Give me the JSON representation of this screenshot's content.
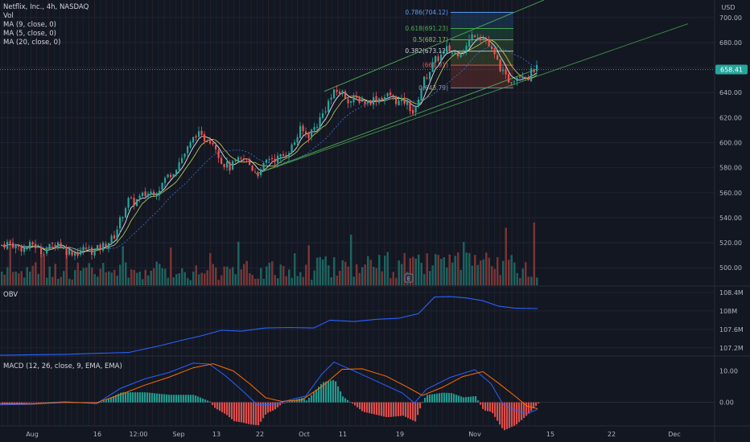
{
  "header": {
    "symbol_line": "Netflix, Inc., 4h, NASDAQ",
    "indicators": [
      "Vol",
      "MA (9, close, 0)",
      "MA (5, close, 0)",
      "MA (20, close, 0)"
    ],
    "currency": "USD"
  },
  "price": {
    "last_label": "658.41",
    "last_color": "#26a69a"
  },
  "fib": {
    "levels": [
      {
        "ratio": "0.786",
        "value": 704.12,
        "label": "0.786(704.12)",
        "color": "#5b9cf6"
      },
      {
        "ratio": "0.618",
        "value": 691.23,
        "label": "0.618(691.23)",
        "color": "#4caf50"
      },
      {
        "ratio": "0.5",
        "value": 682.17,
        "label": "0.5(682.17)",
        "color": "#8bc34a"
      },
      {
        "ratio": "0.382",
        "value": 673.12,
        "label": "0.382(673.12)",
        "color": "#d1d4dc"
      },
      {
        "ratio": "0.236",
        "value": 661.91,
        "label": "(661.91)",
        "color": "#ef5350"
      },
      {
        "ratio": "0",
        "value": 643.79,
        "label": "0(643.79)",
        "color": "#9598a1"
      }
    ]
  },
  "panes": {
    "obv_label": "OBV",
    "macd_label": "MACD (12, 26, close, 9, EMA, EMA)",
    "event_badge": "E"
  },
  "chart_data": [
    {
      "type": "candlestick",
      "title": "Netflix, Inc., 4h, NASDAQ",
      "y_unit": "USD",
      "ylim": [
        486,
        714
      ],
      "y_ticks": [
        500,
        520,
        540,
        560,
        580,
        600,
        620,
        640,
        660,
        680,
        700
      ],
      "y_tick_labels": [
        "500.00",
        "520.00",
        "540.00",
        "560.00",
        "580.00",
        "600.00",
        "620.00",
        "640.00",
        "660.00",
        "680.00",
        "700.00"
      ],
      "x_tick_labels": [
        "Aug",
        "16",
        "12:00",
        "Sep",
        "13",
        "22",
        "Oct",
        "11",
        "19",
        "Nov",
        "15",
        "22",
        "Dec"
      ],
      "close_path": [
        [
          0,
          518
        ],
        [
          10,
          520
        ],
        [
          20,
          517
        ],
        [
          30,
          515
        ],
        [
          40,
          519
        ],
        [
          50,
          513
        ],
        [
          60,
          516
        ],
        [
          70,
          521
        ],
        [
          80,
          514
        ],
        [
          95,
          512
        ],
        [
          105,
          516
        ],
        [
          115,
          513
        ],
        [
          128,
          518
        ],
        [
          140,
          524
        ],
        [
          150,
          541
        ],
        [
          158,
          554
        ],
        [
          165,
          552
        ],
        [
          175,
          557
        ],
        [
          185,
          560
        ],
        [
          195,
          562
        ],
        [
          205,
          572
        ],
        [
          215,
          578
        ],
        [
          225,
          588
        ],
        [
          235,
          598
        ],
        [
          243,
          608
        ],
        [
          250,
          603
        ],
        [
          258,
          604
        ],
        [
          266,
          599
        ],
        [
          274,
          585
        ],
        [
          284,
          580
        ],
        [
          294,
          585
        ],
        [
          304,
          587
        ],
        [
          314,
          578
        ],
        [
          322,
          575
        ],
        [
          332,
          588
        ],
        [
          342,
          587
        ],
        [
          352,
          590
        ],
        [
          362,
          597
        ],
        [
          372,
          610
        ],
        [
          382,
          606
        ],
        [
          392,
          614
        ],
        [
          400,
          623
        ],
        [
          408,
          634
        ],
        [
          416,
          641
        ],
        [
          424,
          640
        ],
        [
          434,
          633
        ],
        [
          444,
          635
        ],
        [
          454,
          632
        ],
        [
          464,
          635
        ],
        [
          474,
          636
        ],
        [
          484,
          638
        ],
        [
          494,
          632
        ],
        [
          504,
          633
        ],
        [
          514,
          622
        ],
        [
          520,
          640
        ],
        [
          526,
          650
        ],
        [
          533,
          658
        ],
        [
          540,
          666
        ],
        [
          548,
          670
        ],
        [
          555,
          675
        ],
        [
          563,
          671
        ],
        [
          570,
          673
        ],
        [
          578,
          676
        ],
        [
          584,
          684
        ],
        [
          590,
          688
        ],
        [
          596,
          685
        ],
        [
          602,
          683
        ],
        [
          608,
          675
        ],
        [
          614,
          668
        ],
        [
          620,
          661
        ],
        [
          626,
          652
        ],
        [
          632,
          650
        ],
        [
          640,
          653
        ],
        [
          648,
          656
        ],
        [
          655,
          652
        ],
        [
          662,
          659
        ],
        [
          668,
          658.41
        ]
      ],
      "volume_path": [
        [
          0,
          512
        ],
        [
          20,
          508
        ],
        [
          40,
          510
        ],
        [
          60,
          506
        ],
        [
          80,
          509
        ],
        [
          100,
          507
        ],
        [
          120,
          511
        ],
        [
          140,
          515
        ],
        [
          160,
          519
        ],
        [
          180,
          520
        ],
        [
          200,
          526
        ],
        [
          220,
          531
        ],
        [
          240,
          538
        ],
        [
          260,
          532
        ],
        [
          280,
          536
        ],
        [
          300,
          541
        ],
        [
          320,
          544
        ],
        [
          340,
          548
        ],
        [
          360,
          554
        ],
        [
          380,
          558
        ],
        [
          400,
          563
        ],
        [
          420,
          562
        ],
        [
          440,
          566
        ],
        [
          460,
          572
        ],
        [
          480,
          575
        ],
        [
          500,
          580
        ],
        [
          520,
          596
        ],
        [
          540,
          610
        ],
        [
          560,
          604
        ],
        [
          580,
          601
        ],
        [
          600,
          600
        ],
        [
          620,
          598
        ],
        [
          640,
          596
        ],
        [
          660,
          590
        ],
        [
          668,
          589
        ]
      ],
      "channel_upper": [
        [
          403,
          641
        ],
        [
          676,
          714
        ]
      ],
      "channel_lower": [
        [
          318,
          575
        ],
        [
          668,
          659
        ]
      ],
      "channel_mid": [
        [
          318,
          575
        ],
        [
          855,
          695
        ]
      ],
      "fib_box": {
        "x_from": 560,
        "x_to": 638
      }
    },
    {
      "type": "line",
      "title": "OBV",
      "y_unit": "shares",
      "y_ticks": [
        107.2,
        107.6,
        108,
        108.4
      ],
      "y_tick_labels": [
        "107.2M",
        "107.6M",
        "108M",
        "108.4M"
      ],
      "ylim": [
        107.04,
        108.52
      ],
      "series": [
        {
          "name": "OBV",
          "color": "#2962ff",
          "points": [
            [
              0,
              107.04
            ],
            [
              40,
              107.05
            ],
            [
              80,
              107.06
            ],
            [
              120,
              107.08
            ],
            [
              160,
              107.1
            ],
            [
              200,
              107.25
            ],
            [
              225,
              107.36
            ],
            [
              250,
              107.46
            ],
            [
              275,
              107.58
            ],
            [
              300,
              107.56
            ],
            [
              330,
              107.63
            ],
            [
              360,
              107.64
            ],
            [
              390,
              107.63
            ],
            [
              410,
              107.8
            ],
            [
              440,
              107.77
            ],
            [
              470,
              107.82
            ],
            [
              495,
              107.84
            ],
            [
              520,
              107.94
            ],
            [
              540,
              108.3
            ],
            [
              560,
              108.31
            ],
            [
              580,
              108.28
            ],
            [
              600,
              108.22
            ],
            [
              620,
              108.1
            ],
            [
              640,
              108.06
            ],
            [
              668,
              108.05
            ]
          ]
        }
      ]
    },
    {
      "type": "macd",
      "title": "MACD (12, 26, close, 9, EMA, EMA)",
      "y_ticks": [
        0,
        10
      ],
      "y_tick_labels": [
        "0.00",
        "10.00"
      ],
      "ylim": [
        -7.5,
        14.5
      ],
      "series": [
        {
          "name": "MACD",
          "color": "#2962ff",
          "points": [
            [
              0,
              -0.8
            ],
            [
              40,
              -0.6
            ],
            [
              80,
              0.2
            ],
            [
              120,
              -0.4
            ],
            [
              150,
              4.5
            ],
            [
              180,
              7.5
            ],
            [
              210,
              9.5
            ],
            [
              240,
              12.5
            ],
            [
              260,
              12.2
            ],
            [
              280,
              8.5
            ],
            [
              300,
              4.0
            ],
            [
              320,
              -0.8
            ],
            [
              340,
              -0.6
            ],
            [
              360,
              0.8
            ],
            [
              380,
              2.0
            ],
            [
              400,
              9.0
            ],
            [
              415,
              12.8
            ],
            [
              440,
              10.0
            ],
            [
              470,
              6.5
            ],
            [
              500,
              3.0
            ],
            [
              515,
              -0.2
            ],
            [
              530,
              4.2
            ],
            [
              560,
              8.0
            ],
            [
              590,
              10.4
            ],
            [
              610,
              6.0
            ],
            [
              625,
              -0.6
            ],
            [
              640,
              -2.5
            ],
            [
              655,
              -3.6
            ],
            [
              668,
              -2.2
            ]
          ]
        },
        {
          "name": "Signal",
          "color": "#ff6d00",
          "points": [
            [
              0,
              -0.4
            ],
            [
              40,
              -0.5
            ],
            [
              80,
              0.0
            ],
            [
              120,
              -0.1
            ],
            [
              150,
              2.5
            ],
            [
              180,
              5.5
            ],
            [
              210,
              8.0
            ],
            [
              240,
              11.0
            ],
            [
              265,
              12.3
            ],
            [
              290,
              10.0
            ],
            [
              310,
              6.0
            ],
            [
              330,
              1.5
            ],
            [
              350,
              0.3
            ],
            [
              375,
              0.8
            ],
            [
              400,
              5.0
            ],
            [
              425,
              10.5
            ],
            [
              450,
              10.7
            ],
            [
              480,
              8.3
            ],
            [
              505,
              5.0
            ],
            [
              525,
              2.2
            ],
            [
              550,
              4.8
            ],
            [
              575,
              8.2
            ],
            [
              600,
              9.8
            ],
            [
              620,
              6.0
            ],
            [
              640,
              2.0
            ],
            [
              655,
              -1.2
            ],
            [
              668,
              -2.0
            ]
          ]
        }
      ]
    }
  ]
}
